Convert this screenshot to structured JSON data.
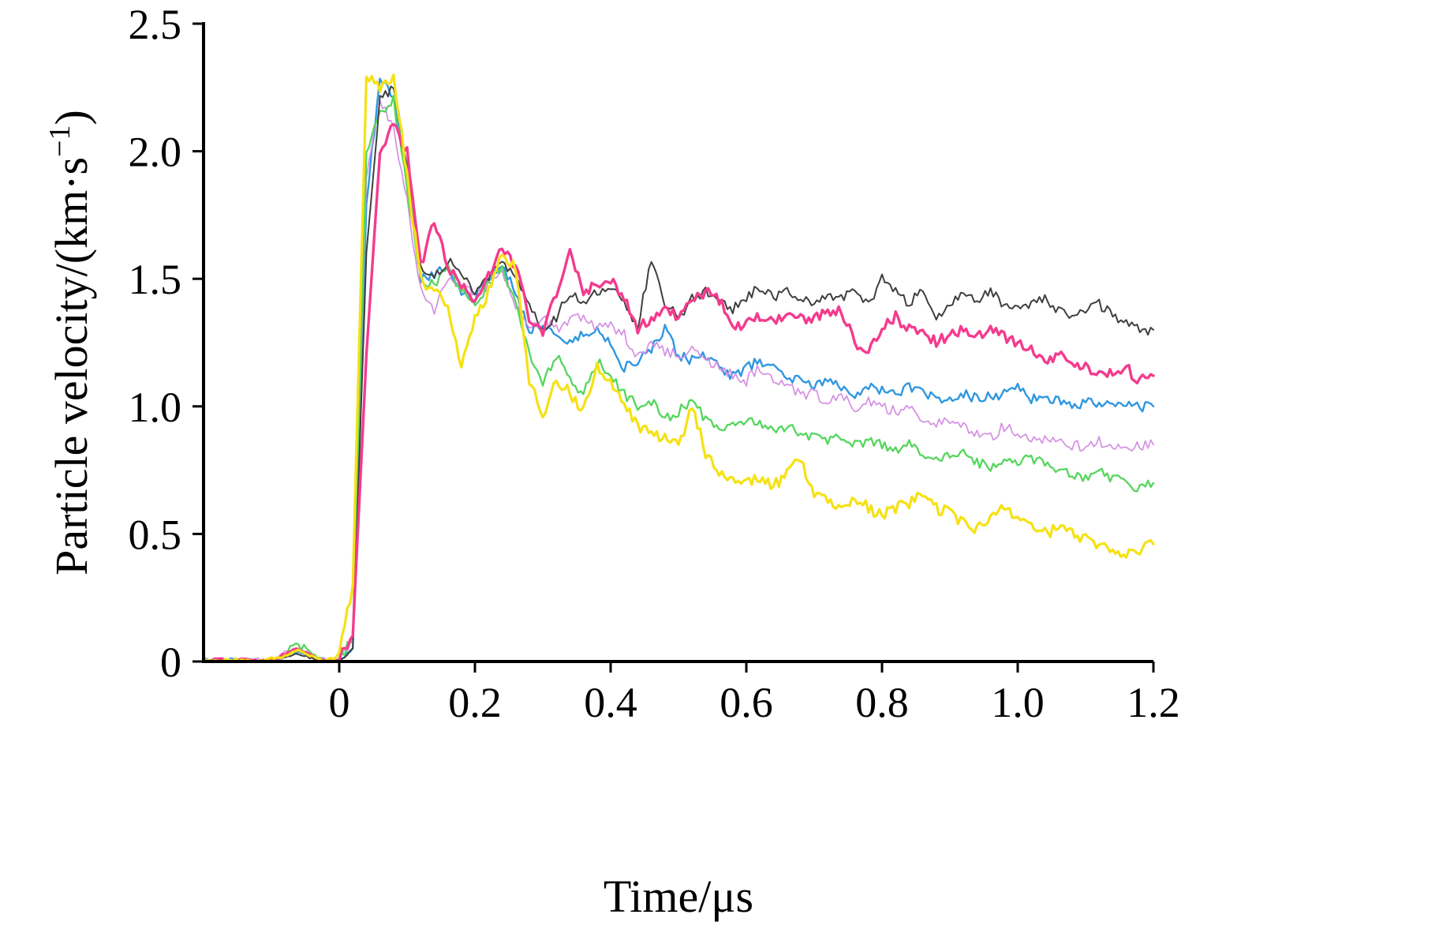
{
  "figure": {
    "xlabel": "Time/μs",
    "ylabel_prefix": "Particle velocity/(km·s",
    "ylabel_sup": "−1",
    "ylabel_close": ")"
  },
  "axes": {
    "x_ticks": [
      0,
      0.2,
      0.4,
      0.6,
      0.8,
      1.0,
      1.2
    ],
    "x_tick_labels": [
      "0",
      "0.2",
      "0.4",
      "0.6",
      "0.8",
      "1.0",
      "1.2"
    ],
    "y_ticks": [
      0,
      0.5,
      1.0,
      1.5,
      2.0,
      2.5
    ],
    "y_tick_labels": [
      "0",
      "0.5",
      "1.0",
      "1.5",
      "2.0",
      "2.5"
    ],
    "axis_color": "#000000"
  },
  "chart_data": {
    "type": "line",
    "title": "",
    "xlabel": "Time/μs",
    "ylabel": "Particle velocity/(km·s⁻¹)",
    "xlim": [
      -0.2,
      1.2
    ],
    "ylim": [
      0,
      2.5
    ],
    "grid": false,
    "legend": "none",
    "x": [
      -0.2,
      -0.18,
      -0.16,
      -0.14,
      -0.12,
      -0.1,
      -0.08,
      -0.06,
      -0.04,
      -0.02,
      0,
      0.02,
      0.04,
      0.06,
      0.08,
      0.1,
      0.12,
      0.14,
      0.16,
      0.18,
      0.2,
      0.22,
      0.24,
      0.26,
      0.28,
      0.3,
      0.32,
      0.34,
      0.36,
      0.38,
      0.4,
      0.42,
      0.44,
      0.46,
      0.48,
      0.5,
      0.52,
      0.54,
      0.56,
      0.58,
      0.6,
      0.62,
      0.64,
      0.66,
      0.68,
      0.7,
      0.72,
      0.74,
      0.76,
      0.78,
      0.8,
      0.82,
      0.84,
      0.86,
      0.88,
      0.9,
      0.92,
      0.94,
      0.96,
      0.98,
      1.0,
      1.02,
      1.04,
      1.06,
      1.08,
      1.1,
      1.12,
      1.14,
      1.16,
      1.18,
      1.2
    ],
    "series": [
      {
        "name": "trace-blue",
        "color": "#2f97e0",
        "width": 2.4,
        "noise": 0.02,
        "values": [
          0,
          0,
          0.01,
          0,
          0,
          0,
          0.02,
          0.04,
          0.02,
          0,
          0,
          0.05,
          1.8,
          2.28,
          2.22,
          1.9,
          1.5,
          1.52,
          1.55,
          1.45,
          1.42,
          1.5,
          1.55,
          1.45,
          1.3,
          1.32,
          1.28,
          1.25,
          1.28,
          1.3,
          1.25,
          1.15,
          1.18,
          1.22,
          1.3,
          1.2,
          1.18,
          1.2,
          1.15,
          1.12,
          1.15,
          1.18,
          1.15,
          1.12,
          1.1,
          1.08,
          1.1,
          1.08,
          1.05,
          1.08,
          1.06,
          1.05,
          1.08,
          1.05,
          1.03,
          1.02,
          1.05,
          1.03,
          1.04,
          1.05,
          1.08,
          1.03,
          1.02,
          1.03,
          1.0,
          1.02,
          1.0,
          1.01,
          1.0,
          1.0,
          1.0
        ]
      },
      {
        "name": "trace-violet",
        "color": "#d48fe4",
        "width": 1.7,
        "noise": 0.022,
        "values": [
          0.01,
          0,
          0,
          0,
          0.01,
          0,
          0.04,
          0.05,
          0.02,
          0.01,
          0,
          0.08,
          1.9,
          2.2,
          2.1,
          1.8,
          1.45,
          1.38,
          1.5,
          1.47,
          1.44,
          1.48,
          1.52,
          1.4,
          1.3,
          1.35,
          1.3,
          1.33,
          1.35,
          1.3,
          1.32,
          1.28,
          1.2,
          1.25,
          1.22,
          1.2,
          1.22,
          1.18,
          1.15,
          1.12,
          1.1,
          1.15,
          1.1,
          1.08,
          1.05,
          1.05,
          1.02,
          1.05,
          1.0,
          1.02,
          1.0,
          0.98,
          1.0,
          0.95,
          0.93,
          0.95,
          0.92,
          0.9,
          0.88,
          0.92,
          0.9,
          0.88,
          0.87,
          0.88,
          0.85,
          0.84,
          0.86,
          0.84,
          0.82,
          0.85,
          0.85
        ]
      },
      {
        "name": "trace-green",
        "color": "#54d65c",
        "width": 2.3,
        "noise": 0.02,
        "values": [
          0.01,
          0,
          0,
          0.01,
          0,
          0,
          0.03,
          0.06,
          0.03,
          0,
          0,
          0.1,
          2.0,
          2.15,
          2.2,
          1.85,
          1.5,
          1.48,
          1.55,
          1.45,
          1.4,
          1.48,
          1.55,
          1.4,
          1.2,
          1.1,
          1.2,
          1.1,
          1.05,
          1.18,
          1.12,
          1.05,
          1.0,
          1.02,
          0.95,
          0.98,
          1.02,
          0.95,
          0.9,
          0.92,
          0.95,
          0.93,
          0.9,
          0.92,
          0.9,
          0.88,
          0.87,
          0.88,
          0.85,
          0.86,
          0.85,
          0.83,
          0.85,
          0.82,
          0.8,
          0.8,
          0.82,
          0.78,
          0.76,
          0.78,
          0.78,
          0.8,
          0.77,
          0.75,
          0.73,
          0.72,
          0.74,
          0.72,
          0.7,
          0.68,
          0.7
        ]
      },
      {
        "name": "trace-black",
        "color": "#3f3f3f",
        "width": 2.0,
        "noise": 0.02,
        "values": [
          0,
          0,
          0,
          0,
          0,
          0.01,
          0.02,
          0.03,
          0.01,
          0,
          0,
          0.05,
          1.6,
          2.2,
          2.25,
          1.95,
          1.55,
          1.5,
          1.57,
          1.52,
          1.45,
          1.5,
          1.58,
          1.5,
          1.4,
          1.3,
          1.35,
          1.45,
          1.4,
          1.45,
          1.47,
          1.4,
          1.32,
          1.58,
          1.4,
          1.35,
          1.42,
          1.45,
          1.43,
          1.38,
          1.42,
          1.47,
          1.43,
          1.45,
          1.42,
          1.4,
          1.44,
          1.42,
          1.45,
          1.4,
          1.5,
          1.45,
          1.4,
          1.46,
          1.35,
          1.4,
          1.44,
          1.42,
          1.45,
          1.4,
          1.38,
          1.4,
          1.42,
          1.38,
          1.35,
          1.37,
          1.4,
          1.36,
          1.33,
          1.3,
          1.3
        ]
      },
      {
        "name": "trace-pink",
        "color": "#f43b8e",
        "width": 3.4,
        "noise": 0.022,
        "values": [
          0,
          0.01,
          0,
          0.01,
          0,
          0,
          0.03,
          0.05,
          0.02,
          0,
          0.01,
          0.1,
          1.2,
          2.0,
          2.1,
          2.0,
          1.55,
          1.73,
          1.55,
          1.48,
          1.42,
          1.52,
          1.62,
          1.55,
          1.35,
          1.28,
          1.45,
          1.6,
          1.45,
          1.48,
          1.5,
          1.42,
          1.3,
          1.35,
          1.38,
          1.35,
          1.42,
          1.45,
          1.42,
          1.3,
          1.33,
          1.35,
          1.33,
          1.36,
          1.35,
          1.34,
          1.37,
          1.38,
          1.25,
          1.22,
          1.3,
          1.35,
          1.3,
          1.28,
          1.25,
          1.28,
          1.3,
          1.28,
          1.3,
          1.27,
          1.25,
          1.22,
          1.18,
          1.2,
          1.17,
          1.15,
          1.14,
          1.12,
          1.15,
          1.1,
          1.12
        ]
      },
      {
        "name": "trace-yellow",
        "color": "#f6e113",
        "width": 3.2,
        "noise": 0.025,
        "values": [
          0,
          0,
          0.01,
          0,
          0,
          0.01,
          0.02,
          0.05,
          0.02,
          0,
          0.02,
          0.3,
          2.3,
          2.25,
          2.3,
          1.9,
          1.5,
          1.45,
          1.4,
          1.15,
          1.35,
          1.45,
          1.6,
          1.55,
          1.1,
          0.97,
          1.1,
          1.05,
          0.98,
          1.15,
          1.1,
          1.0,
          0.92,
          0.9,
          0.88,
          0.85,
          1.0,
          0.82,
          0.75,
          0.72,
          0.7,
          0.72,
          0.68,
          0.75,
          0.78,
          0.65,
          0.62,
          0.6,
          0.65,
          0.6,
          0.58,
          0.6,
          0.62,
          0.65,
          0.6,
          0.58,
          0.55,
          0.52,
          0.58,
          0.62,
          0.55,
          0.52,
          0.5,
          0.53,
          0.5,
          0.48,
          0.45,
          0.43,
          0.42,
          0.44,
          0.46
        ]
      }
    ]
  }
}
